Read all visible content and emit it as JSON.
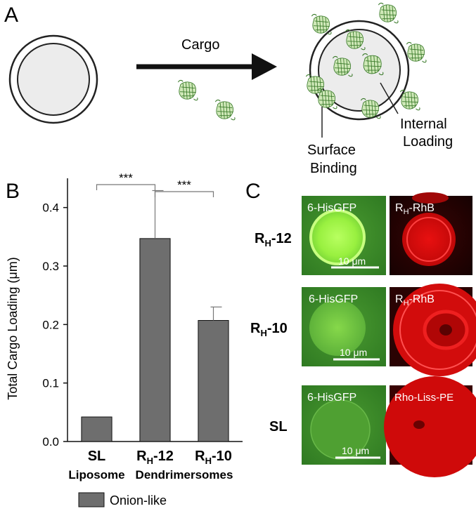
{
  "panels": {
    "a": {
      "letter": "A",
      "arrow_label": "Cargo",
      "label_surface_1": "Surface",
      "label_surface_2": "Binding",
      "label_internal_1": "Internal",
      "label_internal_2": "Loading"
    },
    "b": {
      "letter": "B"
    },
    "c": {
      "letter": "C"
    }
  },
  "chart_data": {
    "type": "bar",
    "ylabel": "Total Cargo Loading (μm)",
    "ylim": [
      0,
      0.45
    ],
    "yticks": [
      0.0,
      0.1,
      0.2,
      0.3,
      0.4
    ],
    "ytick_labels": [
      "0.0",
      "0.1",
      "0.2",
      "0.3",
      "0.4"
    ],
    "categories": [
      {
        "main": "SL",
        "sub": ""
      },
      {
        "main": "R",
        "sub": "H",
        "rest": "-12"
      },
      {
        "main": "R",
        "sub": "H",
        "rest": "-10"
      }
    ],
    "group_labels": [
      "Liposome",
      "Dendrimersomes"
    ],
    "series": [
      {
        "name": "Onion-like",
        "values": [
          0.042,
          0.347,
          0.207
        ],
        "errors": [
          0,
          0.082,
          0.023
        ],
        "color": "#6e6e6e"
      }
    ],
    "significance": [
      {
        "from": 0,
        "to": 1,
        "label": "***"
      },
      {
        "from": 1,
        "to": 2,
        "label": "***"
      }
    ],
    "legend": {
      "label": "Onion-like",
      "placement": "bottom"
    }
  },
  "micrographs": {
    "rows": [
      {
        "label": "R",
        "sub": "H",
        "rest": "-12",
        "left": "6-HisGFP",
        "right_main": "R",
        "right_sub": "H",
        "right_rest": "-RhB",
        "scale": "10 μm"
      },
      {
        "label": "R",
        "sub": "H",
        "rest": "-10",
        "left": "6-HisGFP",
        "right_main": "R",
        "right_sub": "H",
        "right_rest": "-RhB",
        "scale": "10 μm"
      },
      {
        "label": "SL",
        "sub": "",
        "rest": "",
        "left": "6-HisGFP",
        "right_main": "Rho-Liss-PE",
        "right_sub": "",
        "right_rest": "",
        "scale": "10 μm"
      }
    ]
  },
  "colors": {
    "bar": "#6e6e6e",
    "gfp": "#5aa832",
    "rhodamine": "#e01010"
  }
}
